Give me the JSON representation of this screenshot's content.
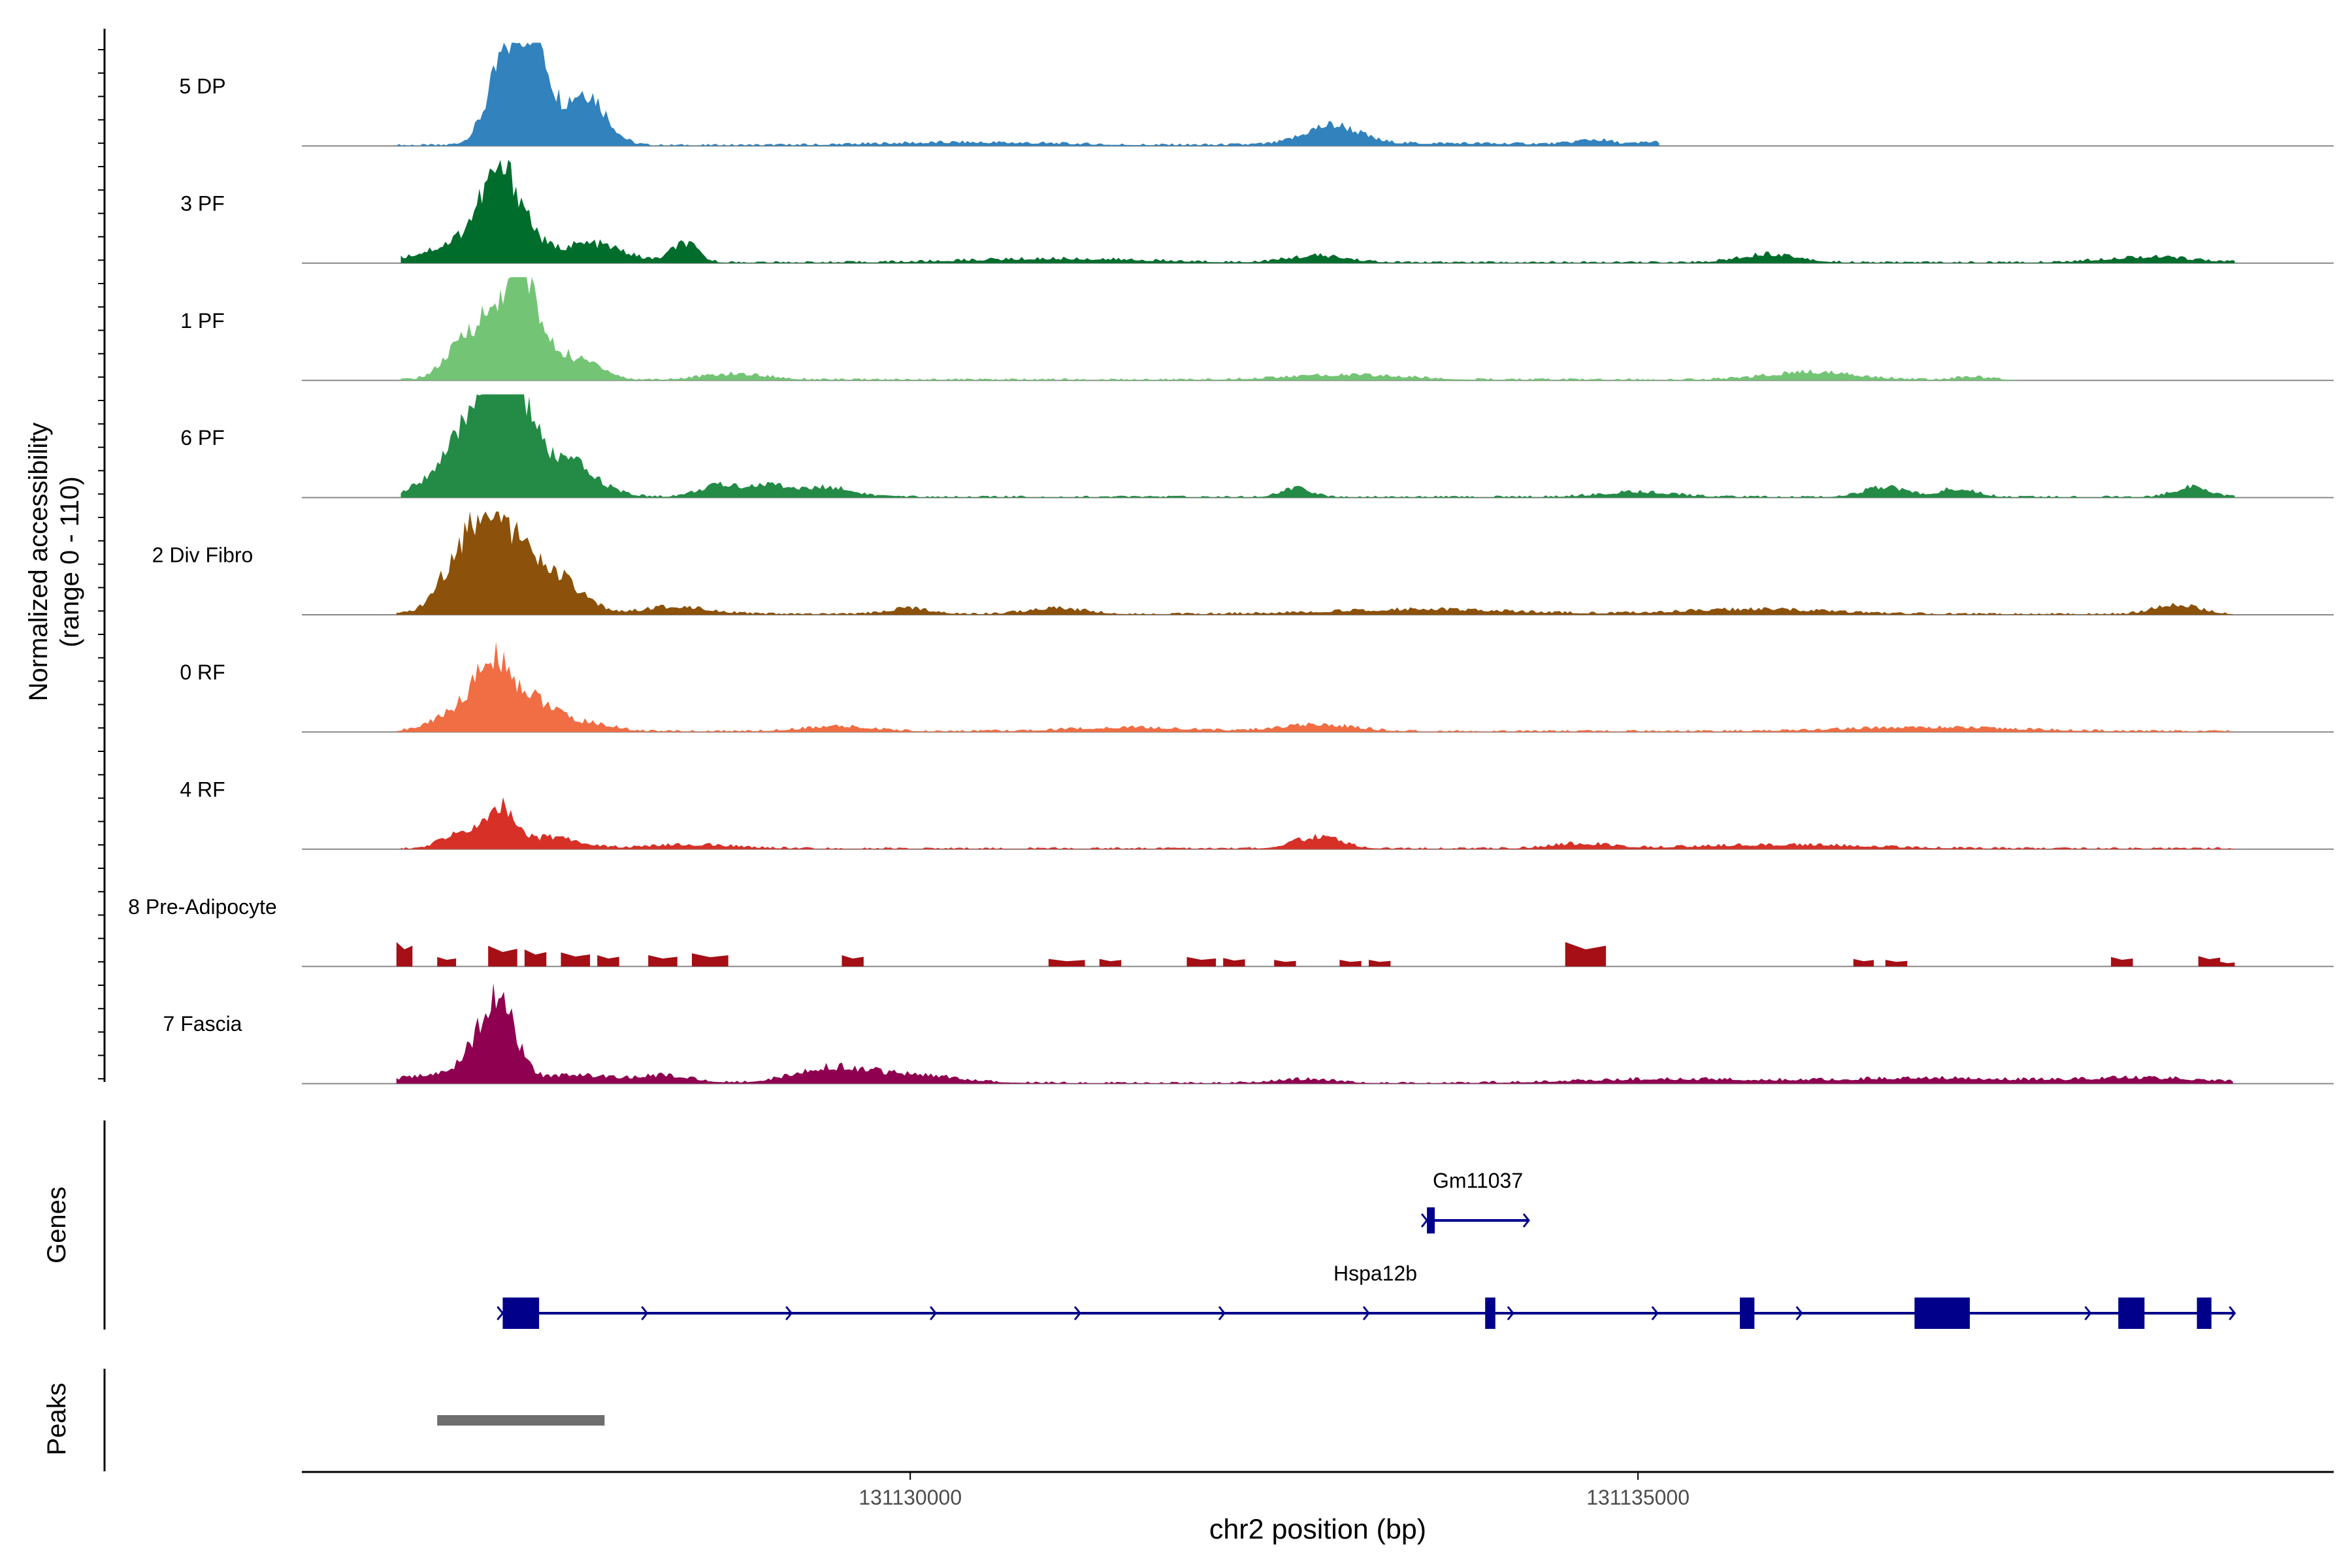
{
  "chart_data": {
    "type": "area",
    "plot": "coverage-track",
    "y_axis_title_line1": "Normalized accessibility",
    "y_axis_title_line2": "(range 0 - 110)",
    "ylim": [
      0,
      110
    ],
    "x_axis_title": "chr2 position (bp)",
    "xlim": [
      131125820,
      131139780
    ],
    "x_ticks": [
      {
        "value": 131130000,
        "label": "131130000"
      },
      {
        "value": 131135000,
        "label": "131135000"
      }
    ],
    "tracks": [
      {
        "name": "5 DP",
        "color": "#3182bd",
        "start": 131126470,
        "end": 131135150,
        "peaks": [
          [
            131127250,
            104,
            130
          ],
          [
            131127440,
            80,
            90
          ],
          [
            131127760,
            58,
            140
          ],
          [
            131132900,
            20,
            180
          ],
          [
            131130400,
            3,
            600
          ],
          [
            131134700,
            5,
            120
          ],
          [
            131135100,
            3,
            80
          ],
          [
            131133600,
            2,
            900
          ],
          [
            131138500,
            1,
            1200
          ]
        ],
        "extra_end": 131138700
      },
      {
        "name": "3 PF",
        "color": "#006d2c",
        "start": 131126500,
        "end": 131139100,
        "peaks": [
          [
            131127200,
            90,
            150
          ],
          [
            131126900,
            18,
            250
          ],
          [
            131127800,
            20,
            220
          ],
          [
            131128450,
            20,
            90
          ],
          [
            131132800,
            7,
            200
          ],
          [
            131135900,
            9,
            200
          ],
          [
            131138500,
            6,
            300
          ],
          [
            131131000,
            4,
            600
          ]
        ]
      },
      {
        "name": "1 PF",
        "color": "#74c476",
        "start": 131126500,
        "end": 131137600,
        "peaks": [
          [
            131127320,
            108,
            95
          ],
          [
            131127080,
            62,
            150
          ],
          [
            131127550,
            30,
            160
          ],
          [
            131126850,
            12,
            110
          ],
          [
            131127850,
            11,
            100
          ],
          [
            131128800,
            6,
            220
          ],
          [
            131133000,
            5,
            400
          ],
          [
            131136200,
            8,
            300
          ],
          [
            131137300,
            3,
            120
          ]
        ]
      },
      {
        "name": "6 PF",
        "color": "#238b45",
        "start": 131126500,
        "end": 131139100,
        "peaks": [
          [
            131127150,
            95,
            120
          ],
          [
            131127000,
            58,
            180
          ],
          [
            131127600,
            40,
            210
          ],
          [
            131127300,
            70,
            110
          ],
          [
            131126750,
            12,
            160
          ],
          [
            131128700,
            12,
            150
          ],
          [
            131129050,
            12,
            140
          ],
          [
            131129450,
            10,
            160
          ],
          [
            131132650,
            9,
            100
          ],
          [
            131136700,
            10,
            150
          ],
          [
            131137200,
            9,
            120
          ],
          [
            131138800,
            10,
            120
          ],
          [
            131135000,
            5,
            250
          ]
        ]
      },
      {
        "name": "2 Div Fibro",
        "color": "#8c510a",
        "start": 131126470,
        "end": 131139100,
        "peaks": [
          [
            131127150,
            85,
            150
          ],
          [
            131127500,
            45,
            200
          ],
          [
            131126850,
            25,
            130
          ],
          [
            131127000,
            38,
            150
          ],
          [
            131128400,
            8,
            220
          ],
          [
            131130000,
            6,
            150
          ],
          [
            131131000,
            6,
            200
          ],
          [
            131138700,
            10,
            150
          ],
          [
            131133500,
            5,
            600
          ],
          [
            131135800,
            5,
            500
          ]
        ]
      },
      {
        "name": "0 RF",
        "color": "#f16d43",
        "start": 131126470,
        "end": 131139100,
        "peaks": [
          [
            131127150,
            54,
            110
          ],
          [
            131127400,
            34,
            160
          ],
          [
            131127000,
            26,
            150
          ],
          [
            131126800,
            8,
            150
          ],
          [
            131127800,
            8,
            160
          ],
          [
            131129500,
            5,
            250
          ],
          [
            131132800,
            7,
            250
          ],
          [
            131131500,
            4,
            400
          ],
          [
            131137000,
            4,
            600
          ]
        ]
      },
      {
        "name": "4 RF",
        "color": "#d73027",
        "start": 131126500,
        "end": 131139100,
        "peaks": [
          [
            131127200,
            42,
            90
          ],
          [
            131127000,
            14,
            110
          ],
          [
            131126850,
            10,
            100
          ],
          [
            131127550,
            12,
            180
          ],
          [
            131132800,
            12,
            160
          ],
          [
            131128500,
            4,
            300
          ],
          [
            131134600,
            5,
            200
          ],
          [
            131136000,
            4,
            600
          ]
        ]
      },
      {
        "name": "8 Pre-Adipocyte",
        "color": "#a50f15",
        "start": 131126470,
        "end": 131139100,
        "segments": [
          [
            131126470,
            131126580,
            26
          ],
          [
            131126750,
            131126880,
            10
          ],
          [
            131127100,
            131127300,
            22
          ],
          [
            131127350,
            131127500,
            18
          ],
          [
            131127600,
            131127800,
            15
          ],
          [
            131127850,
            131128000,
            12
          ],
          [
            131128200,
            131128400,
            12
          ],
          [
            131128500,
            131128750,
            14
          ],
          [
            131129530,
            131129680,
            12
          ],
          [
            131130950,
            131131200,
            8
          ],
          [
            131131300,
            131131450,
            8
          ],
          [
            131131900,
            131132100,
            10
          ],
          [
            131132150,
            131132300,
            9
          ],
          [
            131132500,
            131132650,
            7
          ],
          [
            131132950,
            131133100,
            7
          ],
          [
            131133150,
            131133300,
            7
          ],
          [
            131134500,
            131134780,
            26
          ],
          [
            131136480,
            131136620,
            8
          ],
          [
            131136700,
            131136850,
            7
          ],
          [
            131138250,
            131138400,
            10
          ],
          [
            131138850,
            131139000,
            11
          ],
          [
            131139000,
            131139100,
            5
          ]
        ]
      },
      {
        "name": "7 Fascia",
        "color": "#8f0050",
        "start": 131126470,
        "end": 131139100,
        "peaks": [
          [
            131127200,
            66,
            110
          ],
          [
            131127050,
            38,
            120
          ],
          [
            131126700,
            8,
            200
          ],
          [
            131127700,
            9,
            200
          ],
          [
            131128300,
            8,
            200
          ],
          [
            131129450,
            16,
            250
          ],
          [
            131129950,
            6,
            250
          ],
          [
            131130200,
            3,
            300
          ],
          [
            131132700,
            4,
            200
          ],
          [
            131135200,
            4,
            600
          ],
          [
            131137000,
            5,
            700
          ],
          [
            131138500,
            5,
            400
          ]
        ]
      }
    ],
    "genes_label": "Genes",
    "genes": [
      {
        "name": "Gm11037",
        "strand": "+",
        "start": 131133550,
        "end": 131134250,
        "exons": [
          [
            131133550,
            131133600
          ]
        ]
      },
      {
        "name": "Hspa12b",
        "strand": "+",
        "start": 131127200,
        "end": 131139100,
        "exons": [
          [
            131127200,
            131127450
          ],
          [
            131133950,
            131134020
          ],
          [
            131135700,
            131135800
          ],
          [
            131136900,
            131137280
          ],
          [
            131138300,
            131138480
          ],
          [
            131138840,
            131138940
          ]
        ]
      }
    ],
    "peaks_label": "Peaks",
    "peak_regions": [
      [
        131126750,
        131127900
      ]
    ]
  }
}
